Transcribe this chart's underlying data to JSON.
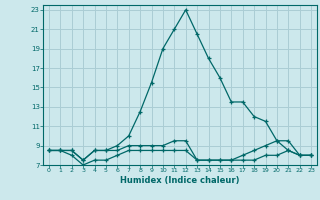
{
  "title": "",
  "xlabel": "Humidex (Indice chaleur)",
  "bg_color": "#cce8ec",
  "grid_color": "#aacdd4",
  "line_color": "#006868",
  "line1_x": [
    0,
    1,
    2,
    3,
    4,
    5,
    6,
    7,
    8,
    9,
    10,
    11,
    12,
    13,
    14,
    15,
    16,
    17,
    18,
    19,
    20,
    21,
    22,
    23
  ],
  "line1_y": [
    8.5,
    8.5,
    8.5,
    7.5,
    8.5,
    8.5,
    9.0,
    10.0,
    12.5,
    15.5,
    19.0,
    21.0,
    23.0,
    20.5,
    18.0,
    16.0,
    13.5,
    13.5,
    12.0,
    11.5,
    9.5,
    8.5,
    8.0,
    8.0
  ],
  "line2_x": [
    0,
    1,
    2,
    3,
    4,
    5,
    6,
    7,
    8,
    9,
    10,
    11,
    12,
    13,
    14,
    15,
    16,
    17,
    18,
    19,
    20,
    21,
    22,
    23
  ],
  "line2_y": [
    8.5,
    8.5,
    8.5,
    7.5,
    8.5,
    8.5,
    8.5,
    9.0,
    9.0,
    9.0,
    9.0,
    9.5,
    9.5,
    7.5,
    7.5,
    7.5,
    7.5,
    8.0,
    8.5,
    9.0,
    9.5,
    9.5,
    8.0,
    8.0
  ],
  "line3_x": [
    0,
    1,
    2,
    3,
    4,
    5,
    6,
    7,
    8,
    9,
    10,
    11,
    12,
    13,
    14,
    15,
    16,
    17,
    18,
    19,
    20,
    21,
    22,
    23
  ],
  "line3_y": [
    8.5,
    8.5,
    8.0,
    7.0,
    7.5,
    7.5,
    8.0,
    8.5,
    8.5,
    8.5,
    8.5,
    8.5,
    8.5,
    7.5,
    7.5,
    7.5,
    7.5,
    7.5,
    7.5,
    8.0,
    8.0,
    8.5,
    8.0,
    8.0
  ],
  "xlim": [
    -0.5,
    23.5
  ],
  "ylim": [
    7,
    23.5
  ],
  "xticks": [
    0,
    1,
    2,
    3,
    4,
    5,
    6,
    7,
    8,
    9,
    10,
    11,
    12,
    13,
    14,
    15,
    16,
    17,
    18,
    19,
    20,
    21,
    22,
    23
  ],
  "yticks": [
    7,
    9,
    11,
    13,
    15,
    17,
    19,
    21,
    23
  ]
}
